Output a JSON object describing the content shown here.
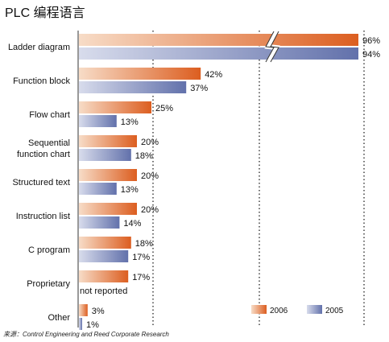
{
  "title": "PLC 编程语言",
  "source": "来源：Control Engineering and Reed Corporate Research",
  "colors": {
    "series_2006": {
      "light": "#f7dcc7",
      "dark": "#dc5e20"
    },
    "series_2005": {
      "light": "#d8dcec",
      "dark": "#6271ab"
    }
  },
  "chart_data": {
    "type": "bar",
    "orientation": "horizontal",
    "categories": [
      "Ladder diagram",
      "Function block",
      "Flow chart",
      "Sequential function chart",
      "Structured text",
      "Instruction list",
      "C program",
      "Proprietary",
      "Other"
    ],
    "series": [
      {
        "name": "2006",
        "values": [
          96,
          42,
          25,
          20,
          20,
          20,
          18,
          17,
          3
        ],
        "labels": [
          "96%",
          "42%",
          "25%",
          "20%",
          "20%",
          "20%",
          "18%",
          "17%",
          "3%"
        ]
      },
      {
        "name": "2005",
        "values": [
          94,
          37,
          13,
          18,
          13,
          14,
          17,
          null,
          1
        ],
        "labels": [
          "94%",
          "37%",
          "13%",
          "18%",
          "13%",
          "14%",
          "17%",
          "not reported",
          "1%"
        ]
      }
    ],
    "unit": "%",
    "axis_break": {
      "category": "Ladder diagram"
    },
    "xlim": [
      0,
      100
    ],
    "grid": "vertical dotted",
    "legend": "bottom-right"
  }
}
